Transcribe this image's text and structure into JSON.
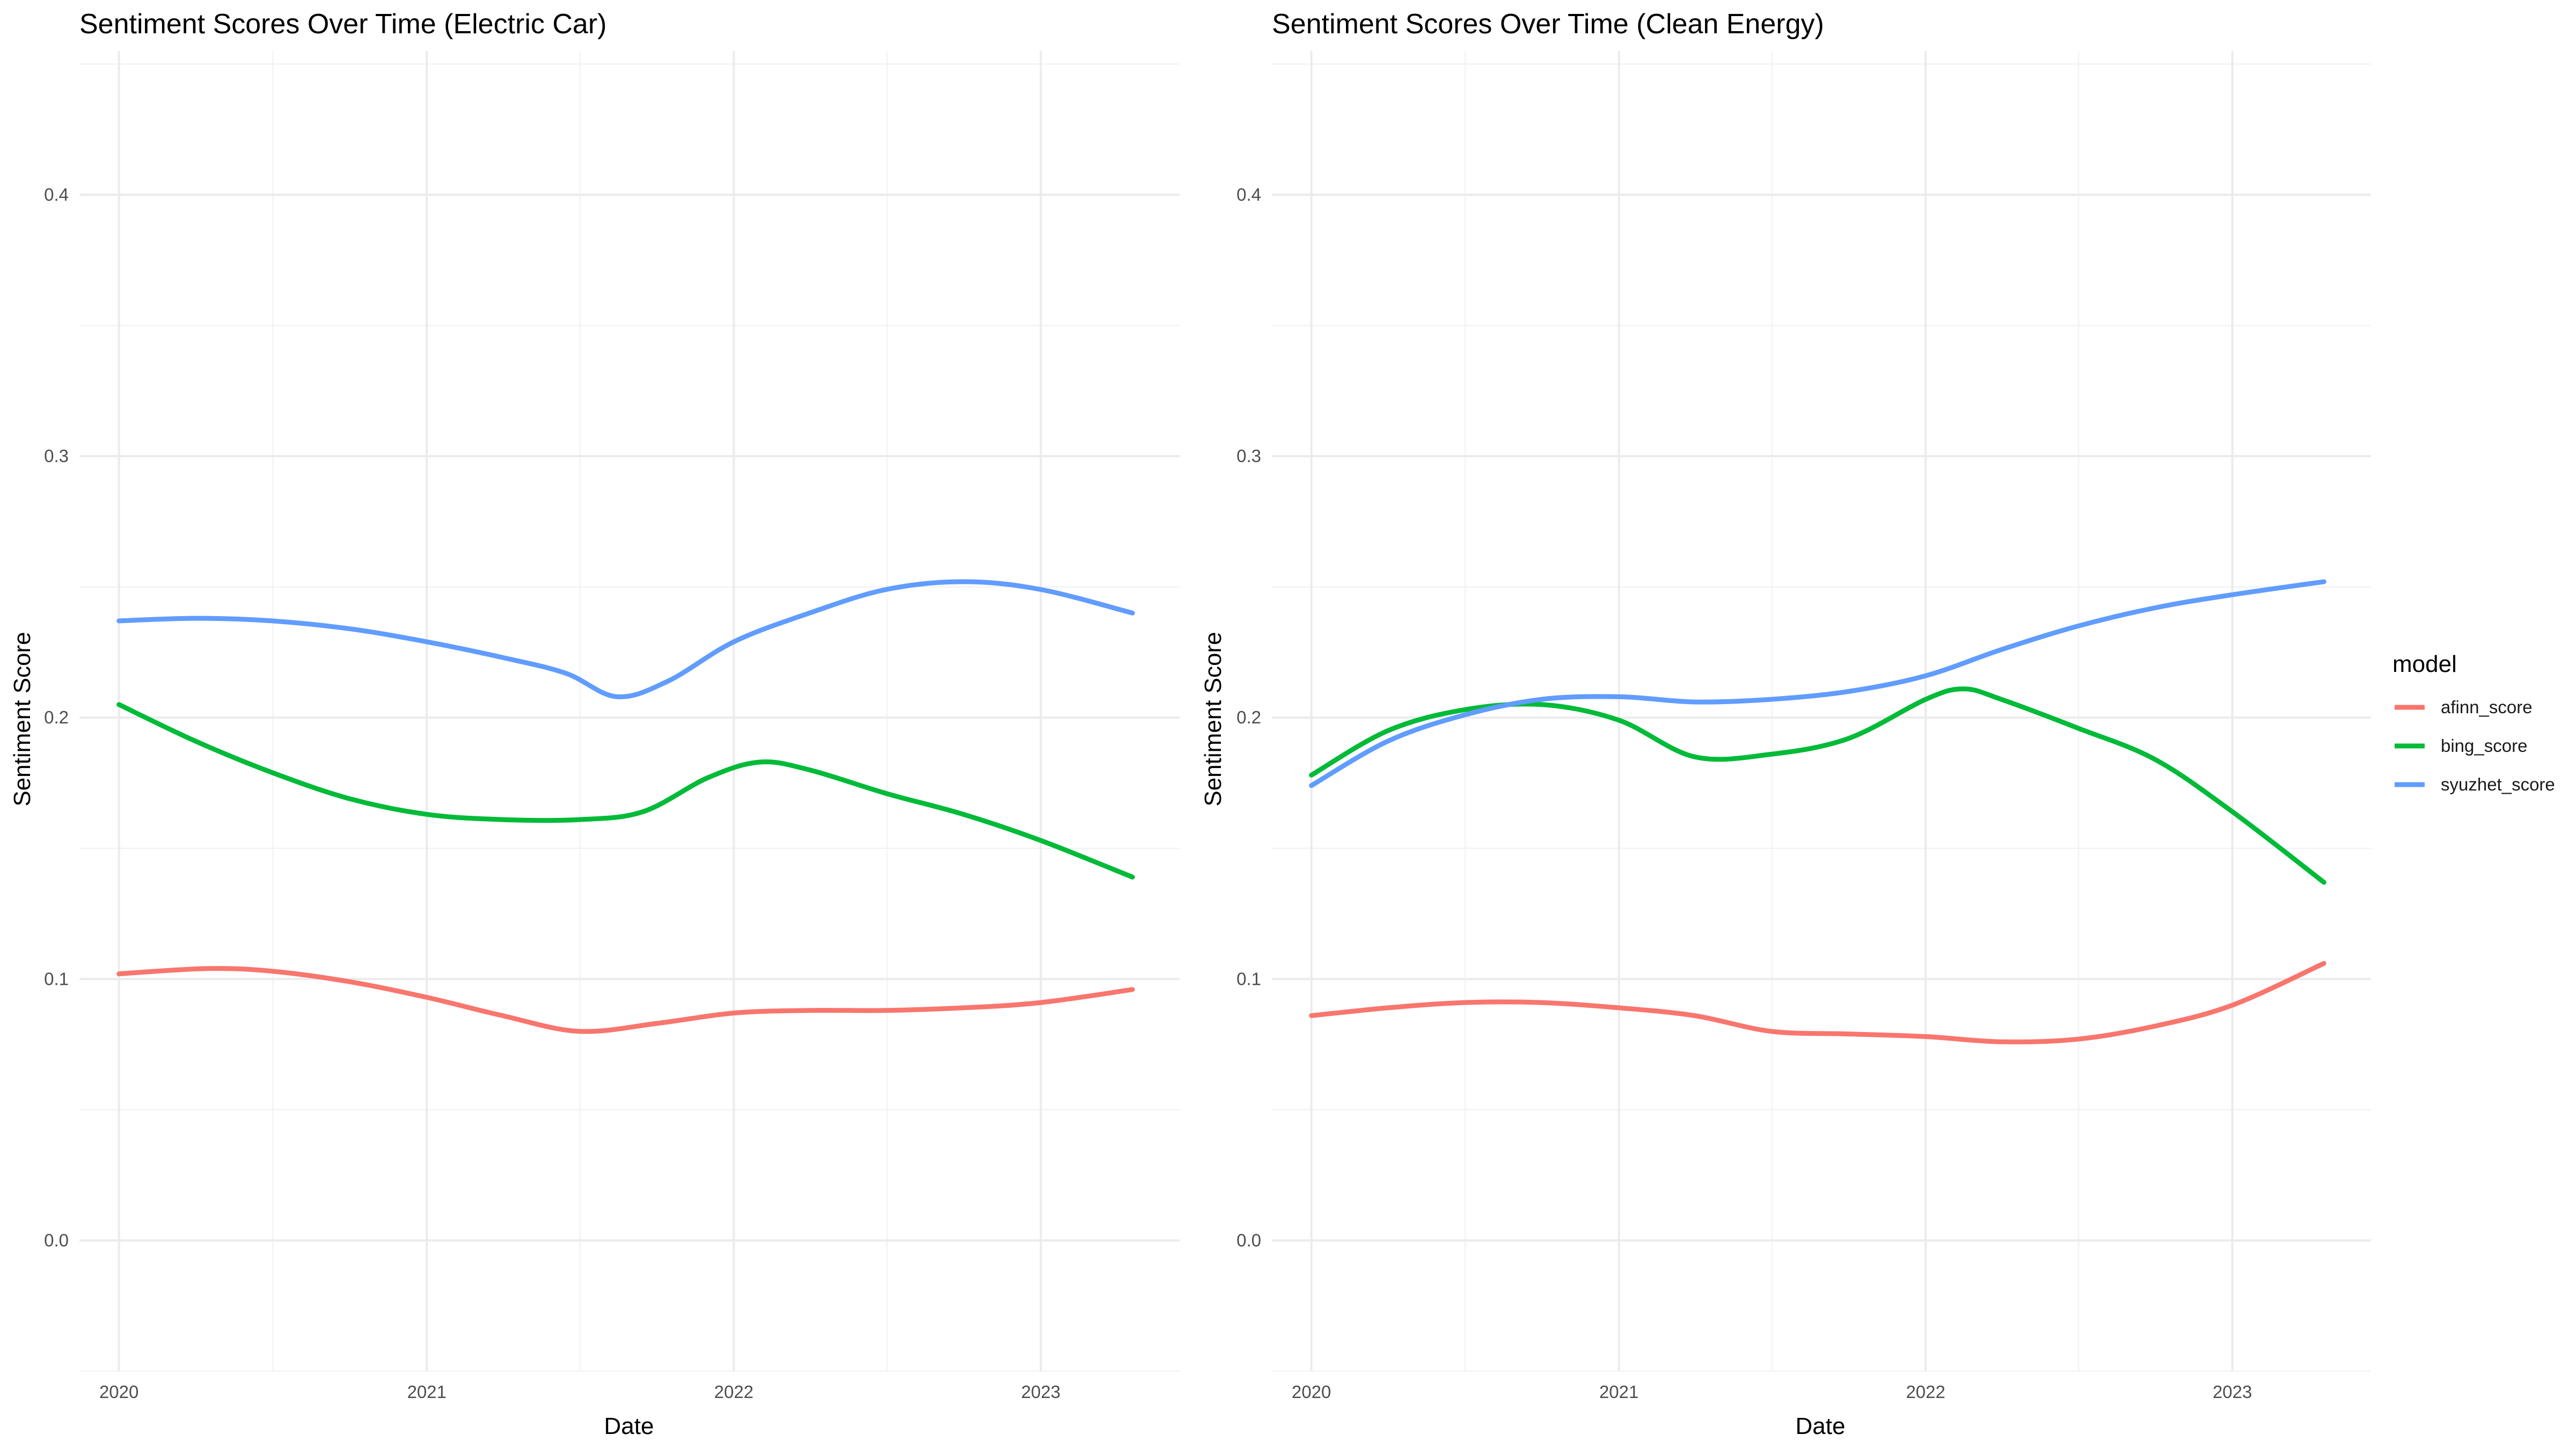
{
  "chart_data": [
    {
      "type": "line",
      "title": "Sentiment Scores Over Time (Electric Car)",
      "xlabel": "Date",
      "ylabel": "Sentiment Score",
      "x_ticks": [
        "2020",
        "2021",
        "2022",
        "2023"
      ],
      "y_ticks": [
        "0.0",
        "0.1",
        "0.2",
        "0.3",
        "0.4"
      ],
      "ylim": [
        -0.05,
        0.455
      ],
      "xlim": [
        "2019-11-15",
        "2023-06-15"
      ],
      "grid": true,
      "series": [
        {
          "name": "afinn_score",
          "color": "#F8766D",
          "x": [
            "2020-01-01",
            "2020-04-15",
            "2020-07-01",
            "2020-10-01",
            "2021-01-01",
            "2021-04-01",
            "2021-07-01",
            "2021-10-01",
            "2022-01-01",
            "2022-04-01",
            "2022-07-01",
            "2022-10-01",
            "2023-01-01",
            "2023-04-20"
          ],
          "y": [
            0.102,
            0.104,
            0.103,
            0.099,
            0.093,
            0.086,
            0.08,
            0.083,
            0.087,
            0.088,
            0.088,
            0.089,
            0.091,
            0.096
          ]
        },
        {
          "name": "bing_score",
          "color": "#00BA38",
          "x": [
            "2020-01-01",
            "2020-04-01",
            "2020-07-01",
            "2020-10-01",
            "2021-01-01",
            "2021-04-01",
            "2021-07-01",
            "2021-09-15",
            "2021-12-01",
            "2022-02-01",
            "2022-04-01",
            "2022-07-01",
            "2022-10-01",
            "2023-01-01",
            "2023-04-20"
          ],
          "y": [
            0.205,
            0.191,
            0.179,
            0.169,
            0.163,
            0.161,
            0.161,
            0.164,
            0.177,
            0.183,
            0.18,
            0.171,
            0.163,
            0.153,
            0.139
          ]
        },
        {
          "name": "syuzhet_score",
          "color": "#619CFF",
          "x": [
            "2020-01-01",
            "2020-04-01",
            "2020-07-01",
            "2020-10-01",
            "2021-01-01",
            "2021-04-01",
            "2021-06-15",
            "2021-08-15",
            "2021-10-15",
            "2022-01-01",
            "2022-04-01",
            "2022-07-01",
            "2022-10-01",
            "2023-01-01",
            "2023-04-20"
          ],
          "y": [
            0.237,
            0.238,
            0.237,
            0.234,
            0.229,
            0.223,
            0.217,
            0.208,
            0.214,
            0.229,
            0.24,
            0.249,
            0.252,
            0.249,
            0.24
          ]
        }
      ]
    },
    {
      "type": "line",
      "title": "Sentiment Scores Over Time (Clean Energy)",
      "xlabel": "Date",
      "ylabel": "Sentiment Score",
      "x_ticks": [
        "2020",
        "2021",
        "2022",
        "2023"
      ],
      "y_ticks": [
        "0.0",
        "0.1",
        "0.2",
        "0.3",
        "0.4"
      ],
      "ylim": [
        -0.05,
        0.455
      ],
      "xlim": [
        "2019-11-15",
        "2023-06-15"
      ],
      "grid": true,
      "series": [
        {
          "name": "afinn_score",
          "color": "#F8766D",
          "x": [
            "2020-01-01",
            "2020-04-01",
            "2020-07-01",
            "2020-10-01",
            "2021-01-01",
            "2021-04-01",
            "2021-07-01",
            "2021-10-01",
            "2022-01-01",
            "2022-04-01",
            "2022-07-01",
            "2022-10-01",
            "2023-01-01",
            "2023-04-20"
          ],
          "y": [
            0.086,
            0.089,
            0.091,
            0.091,
            0.089,
            0.086,
            0.08,
            0.079,
            0.078,
            0.076,
            0.077,
            0.082,
            0.09,
            0.106
          ]
        },
        {
          "name": "bing_score",
          "color": "#00BA38",
          "x": [
            "2020-01-01",
            "2020-04-01",
            "2020-07-01",
            "2020-10-01",
            "2021-01-01",
            "2021-04-01",
            "2021-07-01",
            "2021-10-01",
            "2022-01-01",
            "2022-02-15",
            "2022-04-01",
            "2022-07-01",
            "2022-10-01",
            "2023-01-01",
            "2023-04-20"
          ],
          "y": [
            0.178,
            0.195,
            0.203,
            0.205,
            0.199,
            0.185,
            0.186,
            0.192,
            0.207,
            0.211,
            0.207,
            0.196,
            0.184,
            0.164,
            0.137
          ]
        },
        {
          "name": "syuzhet_score",
          "color": "#619CFF",
          "x": [
            "2020-01-01",
            "2020-04-01",
            "2020-07-01",
            "2020-10-01",
            "2021-01-01",
            "2021-04-01",
            "2021-07-01",
            "2021-10-01",
            "2022-01-01",
            "2022-04-01",
            "2022-07-01",
            "2022-10-01",
            "2023-01-01",
            "2023-04-20"
          ],
          "y": [
            0.174,
            0.191,
            0.201,
            0.207,
            0.208,
            0.206,
            0.207,
            0.21,
            0.216,
            0.226,
            0.235,
            0.242,
            0.247,
            0.252
          ]
        }
      ]
    }
  ],
  "legend": {
    "title": "model",
    "items": [
      {
        "label": "afinn_score",
        "color": "#F8766D"
      },
      {
        "label": "bing_score",
        "color": "#00BA38"
      },
      {
        "label": "syuzhet_score",
        "color": "#619CFF"
      }
    ]
  }
}
